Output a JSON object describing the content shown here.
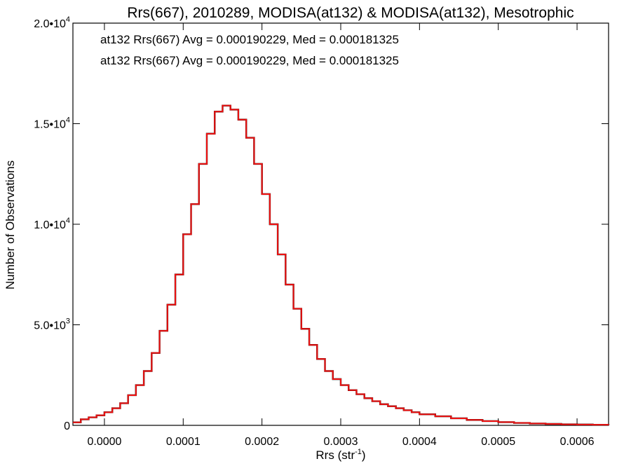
{
  "chart_data": {
    "type": "line",
    "title": "Rrs(667), 2010289, MODISA(at132) & MODISA(at132), Mesotrophic",
    "xlabel": "Rrs (str",
    "xlabel_sup": "-1",
    "xlabel_close": ")",
    "ylabel": "Number of Observations",
    "xlim": [
      -4e-05,
      0.00064
    ],
    "ylim": [
      0,
      20000
    ],
    "grid": false,
    "x_ticks": [
      0.0,
      0.0001,
      0.0002,
      0.0003,
      0.0004,
      0.0005,
      0.0006
    ],
    "x_tick_labels": [
      "0.0000",
      "0.0001",
      "0.0002",
      "0.0003",
      "0.0004",
      "0.0005",
      "0.0006"
    ],
    "y_ticks": [
      0,
      5000,
      10000,
      15000,
      20000
    ],
    "y_tick_labels": [
      {
        "mant": "0",
        "exp": ""
      },
      {
        "mant": "5.0•10",
        "exp": "3"
      },
      {
        "mant": "1.0•10",
        "exp": "4"
      },
      {
        "mant": "1.5•10",
        "exp": "4"
      },
      {
        "mant": "2.0•10",
        "exp": "4"
      }
    ],
    "annotations": [
      {
        "text": "at132 Rrs(667) Avg = 0.000190229, Med = 0.000181325",
        "color": "#000000"
      },
      {
        "text": "at132 Rrs(667) Avg = 0.000190229, Med = 0.000181325",
        "color": "#ee1111"
      }
    ],
    "series": [
      {
        "color": "#ee1111",
        "overlay_color": "#000000",
        "style": "step",
        "x": [
          -4e-05,
          -3e-05,
          -2e-05,
          -1e-05,
          0.0,
          1e-05,
          2e-05,
          3e-05,
          4e-05,
          5e-05,
          6e-05,
          7e-05,
          8e-05,
          9e-05,
          0.0001,
          0.00011,
          0.00012,
          0.00013,
          0.00014,
          0.00015,
          0.00016,
          0.00017,
          0.00018,
          0.00019,
          0.0002,
          0.00021,
          0.00022,
          0.00023,
          0.00024,
          0.00025,
          0.00026,
          0.00027,
          0.00028,
          0.00029,
          0.0003,
          0.00031,
          0.00032,
          0.00033,
          0.00034,
          0.00035,
          0.00036,
          0.00037,
          0.00038,
          0.00039,
          0.0004,
          0.00042,
          0.00044,
          0.00046,
          0.00048,
          0.0005,
          0.00052,
          0.00054,
          0.00056,
          0.00058,
          0.0006,
          0.00062,
          0.00064
        ],
        "y": [
          150,
          300,
          400,
          500,
          650,
          850,
          1100,
          1500,
          2000,
          2700,
          3600,
          4700,
          6000,
          7500,
          9500,
          11000,
          13000,
          14500,
          15600,
          15900,
          15700,
          15200,
          14300,
          13000,
          11500,
          10000,
          8500,
          7000,
          5800,
          4800,
          4000,
          3300,
          2700,
          2300,
          2000,
          1750,
          1550,
          1350,
          1200,
          1050,
          950,
          850,
          750,
          650,
          550,
          450,
          350,
          270,
          210,
          160,
          120,
          90,
          70,
          50,
          40,
          30,
          20
        ]
      }
    ]
  }
}
